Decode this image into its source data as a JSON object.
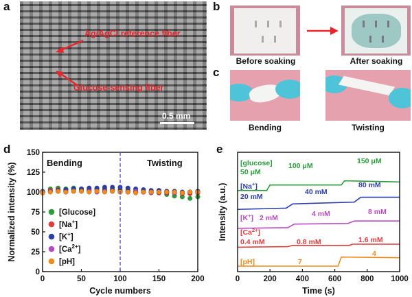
{
  "panel_labels": {
    "a": "a",
    "b": "b",
    "c": "c",
    "d": "d",
    "e": "e"
  },
  "panel_a": {
    "ref_label": "Ag/AgCl reference fiber",
    "glucose_label": "Glucose-sensing fiber",
    "scale_bar": "0.5 mm"
  },
  "panel_b": {
    "before": "Before soaking",
    "after": "After soaking"
  },
  "panel_c": {
    "bending": "Bending",
    "twisting": "Twisting"
  },
  "colors": {
    "green": "#2a9d3a",
    "red": "#e23b3b",
    "blue": "#2b3fa8",
    "purple": "#b44bc0",
    "orange": "#f08a1c",
    "sem_label": "#e8252b"
  },
  "chart_data": [
    {
      "type": "scatter",
      "title": "",
      "xlabel": "Cycle numbers",
      "ylabel": "Normalized intensity (%)",
      "xlim": [
        0,
        200
      ],
      "ylim": [
        0,
        150
      ],
      "xticks": [
        "0",
        "50",
        "100",
        "150",
        "200"
      ],
      "yticks": [
        "0",
        "25",
        "50",
        "75",
        "100",
        "125",
        "150"
      ],
      "annotations": [
        "Bending",
        "Twisting"
      ],
      "divider_x": 100,
      "x": [
        0,
        10,
        20,
        30,
        40,
        50,
        60,
        70,
        80,
        90,
        100,
        110,
        120,
        130,
        140,
        150,
        160,
        170,
        180,
        190,
        200
      ],
      "series": [
        {
          "name": "[Glucose]",
          "color": "#2a9d3a",
          "values": [
            101,
            104,
            105,
            104,
            105,
            104,
            103,
            104,
            104,
            103,
            103,
            102,
            101,
            100,
            100,
            99,
            97,
            95,
            94,
            92,
            94
          ]
        },
        {
          "name": "[Na+]",
          "color": "#e23b3b",
          "values": [
            99,
            102,
            103,
            102,
            103,
            102,
            102,
            103,
            102,
            102,
            101,
            101,
            100,
            100,
            100,
            99,
            99,
            99,
            98,
            98,
            99
          ]
        },
        {
          "name": "[K+]",
          "color": "#2b3fa8",
          "values": [
            100,
            101,
            102,
            103,
            104,
            104,
            105,
            105,
            106,
            106,
            106,
            105,
            104,
            103,
            102,
            102,
            101,
            101,
            100,
            100,
            101
          ]
        },
        {
          "name": "[Ca2+]",
          "color": "#b44bc0",
          "values": [
            100,
            101,
            101,
            100,
            101,
            101,
            101,
            100,
            101,
            101,
            100,
            100,
            101,
            100,
            99,
            100,
            100,
            99,
            99,
            100,
            100
          ]
        },
        {
          "name": "[pH]",
          "color": "#f08a1c",
          "values": [
            99,
            100,
            101,
            100,
            101,
            101,
            100,
            101,
            100,
            101,
            100,
            100,
            99,
            100,
            100,
            100,
            100,
            100,
            99,
            100,
            100
          ]
        }
      ],
      "legend": [
        "[Glucose]",
        "[Na",
        "+",
        "]",
        "[K",
        "+",
        "]",
        "[Ca",
        "2+",
        "]",
        "[pH]"
      ]
    },
    {
      "type": "line",
      "title": "",
      "xlabel": "Time (s)",
      "ylabel": "Intensity (a.u.)",
      "xlim": [
        0,
        1000
      ],
      "xticks": [
        "0",
        "200",
        "400",
        "600",
        "800",
        "1000"
      ],
      "series": [
        {
          "name": "[glucose]",
          "color": "#2a9d3a",
          "label_parts": [
            "[glucose]"
          ],
          "steps": [
            [
              0,
              0
            ],
            [
              180,
              0
            ],
            [
              200,
              0.9
            ],
            [
              640,
              0.9
            ],
            [
              660,
              1.6
            ],
            [
              1000,
              1.4
            ]
          ],
          "level_labels": [
            "50 μM",
            "100 μM",
            "150 μM"
          ],
          "baseline": 4.0
        },
        {
          "name": "[Na+]",
          "color": "#2b3fa8",
          "label_parts": [
            "[Na",
            "+",
            "]"
          ],
          "steps": [
            [
              0,
              0
            ],
            [
              300,
              0.2
            ],
            [
              340,
              0.9
            ],
            [
              720,
              1.2
            ],
            [
              760,
              2.0
            ],
            [
              1000,
              2.0
            ]
          ],
          "level_labels": [
            "20 mM",
            "40 mM",
            "80 mM"
          ],
          "baseline": 3.0
        },
        {
          "name": "[K+]",
          "color": "#b44bc0",
          "label_parts": [
            "[K",
            "+",
            "]"
          ],
          "steps": [
            [
              0,
              0
            ],
            [
              310,
              0.1
            ],
            [
              350,
              0.7
            ],
            [
              680,
              0.8
            ],
            [
              720,
              1.2
            ],
            [
              1000,
              1.2
            ]
          ],
          "level_labels": [
            "2 mM",
            "4 mM",
            "8 mM"
          ],
          "baseline": 2.0
        },
        {
          "name": "[Ca2+]",
          "color": "#e23b3b",
          "label_parts": [
            "[Ca",
            "2+",
            "]"
          ],
          "steps": [
            [
              0,
              0
            ],
            [
              310,
              0.1
            ],
            [
              340,
              0.3
            ],
            [
              690,
              0.3
            ],
            [
              710,
              0.5
            ],
            [
              1000,
              0.5
            ]
          ],
          "level_labels": [
            "0.4 mM",
            "0.8 mM",
            "1.6 mM"
          ],
          "baseline": 1.0
        },
        {
          "name": "[pH]",
          "color": "#f08a1c",
          "label_parts": [
            "[pH]"
          ],
          "steps": [
            [
              0,
              0
            ],
            [
              620,
              0
            ],
            [
              640,
              1.5
            ],
            [
              1000,
              1.4
            ]
          ],
          "level_labels": [
            "7",
            "4"
          ],
          "baseline": 0.0
        }
      ]
    }
  ]
}
